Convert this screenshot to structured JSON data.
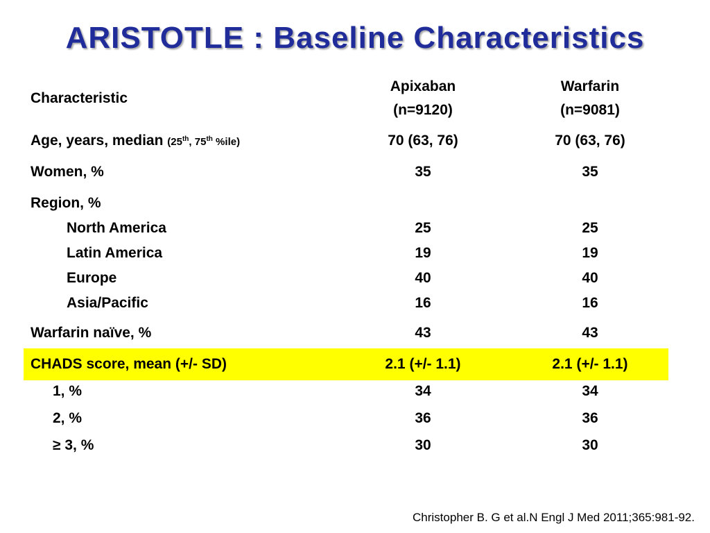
{
  "title": "ARISTOTLE : Baseline Characteristics",
  "header": {
    "characteristic": "Characteristic",
    "apixaban_name": "Apixaban",
    "apixaban_n": "(n=9120)",
    "warfarin_name": "Warfarin",
    "warfarin_n": "(n=9081)"
  },
  "age": {
    "label": "Age, years, median",
    "qualifier_open": "(25",
    "sup1": "th",
    "qualifier_mid": ", 75",
    "sup2": "th",
    "qualifier_close": " %ile)",
    "apixaban": "70 (63, 76)",
    "warfarin": "70 (63, 76)"
  },
  "women": {
    "label": "Women, %",
    "apixaban": "35",
    "warfarin": "35"
  },
  "region": {
    "label": "Region, %",
    "items": [
      {
        "label": "North America",
        "apixaban": "25",
        "warfarin": "25"
      },
      {
        "label": "Latin America",
        "apixaban": "19",
        "warfarin": "19"
      },
      {
        "label": "Europe",
        "apixaban": "40",
        "warfarin": "40"
      },
      {
        "label": "Asia/Pacific",
        "apixaban": "16",
        "warfarin": "16"
      }
    ]
  },
  "warfarin_naive": {
    "label": "Warfarin naïve, %",
    "apixaban": "43",
    "warfarin": "43"
  },
  "chads": {
    "label": "CHADS score, mean (+/- SD)",
    "apixaban": "2.1 (+/- 1.1)",
    "warfarin": "2.1 (+/- 1.1)",
    "highlight_color": "#ffff00",
    "items": [
      {
        "label": "1, %",
        "apixaban": "34",
        "warfarin": "34"
      },
      {
        "label": "2, %",
        "apixaban": "36",
        "warfarin": "36"
      },
      {
        "label": "≥ 3, %",
        "apixaban": "30",
        "warfarin": "30"
      }
    ]
  },
  "citation": "Christopher B. G et al.N Engl J Med 2011;365:981-92.",
  "colors": {
    "title": "#1f2c9a"
  }
}
